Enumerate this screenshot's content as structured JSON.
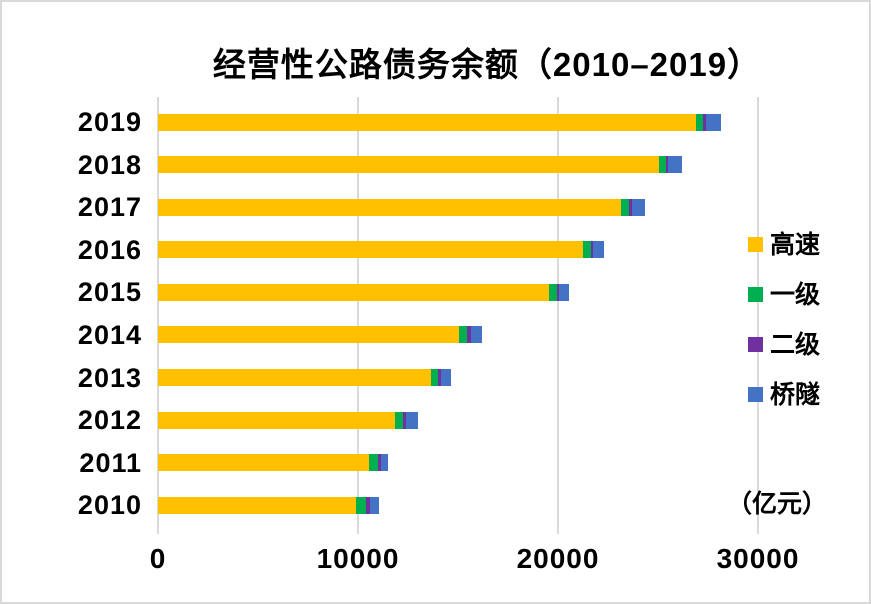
{
  "title": "经营性公路债务余额（2010–2019）",
  "unit_label": "（亿元）",
  "colors": {
    "expressway": "#FFC000",
    "class1": "#00B050",
    "class2": "#7030A0",
    "bridge_tunnel": "#4472C4",
    "gridline": "#D9D9D9",
    "text": "#000000",
    "frame_border": "#D9D9D9"
  },
  "chart_data": {
    "type": "bar",
    "orientation": "horizontal",
    "stacked": true,
    "title": "经营性公路债务余额（2010–2019）",
    "unit": "亿元",
    "categories": [
      "2019",
      "2018",
      "2017",
      "2016",
      "2015",
      "2014",
      "2013",
      "2012",
      "2011",
      "2010"
    ],
    "series": [
      {
        "name": "高速",
        "color": "#FFC000",
        "values": [
          26900,
          25050,
          23150,
          21250,
          19550,
          15050,
          13650,
          11850,
          10550,
          9900
        ]
      },
      {
        "name": "一级",
        "color": "#00B050",
        "values": [
          370,
          330,
          400,
          380,
          380,
          420,
          370,
          390,
          470,
          520
        ]
      },
      {
        "name": "二级",
        "color": "#7030A0",
        "values": [
          120,
          100,
          140,
          120,
          120,
          160,
          150,
          150,
          130,
          170
        ]
      },
      {
        "name": "桥隧",
        "color": "#4472C4",
        "values": [
          740,
          730,
          670,
          570,
          500,
          550,
          480,
          590,
          330,
          450
        ]
      }
    ],
    "totals": [
      28130,
      26210,
      24360,
      22320,
      20550,
      16180,
      14650,
      12980,
      11480,
      11040
    ],
    "x_ticks": [
      0,
      10000,
      20000,
      30000
    ],
    "x_tick_labels": [
      "0",
      "10000",
      "20000",
      "30000"
    ],
    "xlim": [
      0,
      30000
    ],
    "grid": true,
    "legend_position": "right",
    "legend_entries": [
      "高速",
      "一级",
      "二级",
      "桥隧"
    ]
  }
}
